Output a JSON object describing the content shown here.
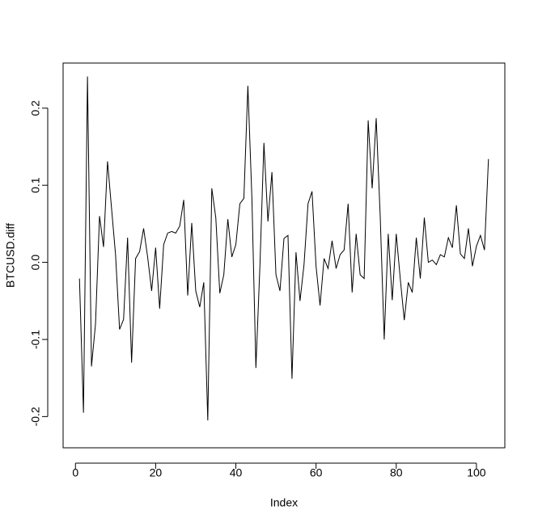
{
  "chart_data": {
    "type": "line",
    "xlabel": "Index",
    "ylabel": "BTCUSD.diff",
    "x": [
      1,
      2,
      3,
      4,
      5,
      6,
      7,
      8,
      9,
      10,
      11,
      12,
      13,
      14,
      15,
      16,
      17,
      18,
      19,
      20,
      21,
      22,
      23,
      24,
      25,
      26,
      27,
      28,
      29,
      30,
      31,
      32,
      33,
      34,
      35,
      36,
      37,
      38,
      39,
      40,
      41,
      42,
      43,
      44,
      45,
      46,
      47,
      48,
      49,
      50,
      51,
      52,
      53,
      54,
      55,
      56,
      57,
      58,
      59,
      60,
      61,
      62,
      63,
      64,
      65,
      66,
      67,
      68,
      69,
      70,
      71,
      72,
      73,
      74,
      75,
      76,
      77,
      78,
      79,
      80,
      81,
      82,
      83,
      84,
      85,
      86,
      87,
      88,
      89,
      90,
      91,
      92,
      93,
      94,
      95,
      96,
      97,
      98,
      99,
      100,
      101,
      102,
      103
    ],
    "series": [
      {
        "name": "BTCUSD.diff",
        "color": "#000000",
        "values": [
          -0.021,
          -0.195,
          0.241,
          -0.135,
          -0.08,
          0.06,
          0.02,
          0.131,
          0.07,
          0.01,
          -0.087,
          -0.074,
          0.032,
          -0.13,
          0.005,
          0.014,
          0.044,
          0.007,
          -0.037,
          0.019,
          -0.06,
          0.023,
          0.038,
          0.04,
          0.038,
          0.047,
          0.081,
          -0.043,
          0.051,
          -0.037,
          -0.058,
          -0.026,
          -0.205,
          0.096,
          0.058,
          -0.04,
          -0.016,
          0.056,
          0.007,
          0.023,
          0.076,
          0.083,
          0.229,
          0.084,
          -0.137,
          -0.005,
          0.155,
          0.053,
          0.117,
          -0.016,
          -0.037,
          0.031,
          0.035,
          -0.151,
          0.013,
          -0.05,
          -0.003,
          0.076,
          0.092,
          -0.005,
          -0.056,
          0.005,
          -0.008,
          0.028,
          -0.008,
          0.01,
          0.016,
          0.076,
          -0.039,
          0.037,
          -0.016,
          -0.021,
          0.184,
          0.096,
          0.187,
          0.06,
          -0.1,
          0.037,
          -0.049,
          0.037,
          -0.021,
          -0.075,
          -0.026,
          -0.039,
          0.032,
          -0.021,
          0.058,
          0.0,
          0.003,
          -0.003,
          0.01,
          0.007,
          0.032,
          0.019,
          0.074,
          0.011,
          0.005,
          0.044,
          -0.005,
          0.021,
          0.035,
          0.016,
          0.134
        ]
      }
    ],
    "xlim": [
      -3.08,
      107.08
    ],
    "xticks": [
      0,
      20,
      40,
      60,
      80,
      100
    ],
    "ylim": [
      -0.2405,
      0.2585
    ],
    "yticks": [
      -0.2,
      -0.1,
      {
        "value": 0,
        "label": "0.0"
      },
      0.1,
      0.2
    ]
  }
}
